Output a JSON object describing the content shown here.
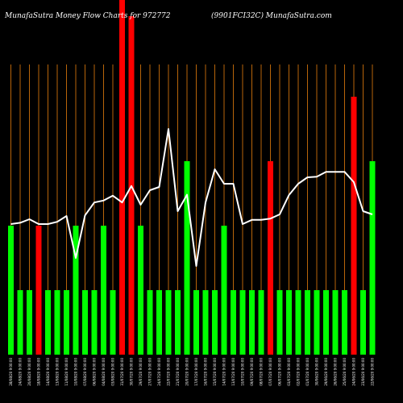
{
  "header": {
    "left_text": "MunafaSutra  Money Flow  Charts for 972772",
    "right_text": "(9901FCI32C) MunafaSutra.com"
  },
  "colors": {
    "background": "#000000",
    "gridline": "#b8650a",
    "bar_up": "#00ff00",
    "bar_down": "#ff0000",
    "line": "#ffffff",
    "text": "#ffffff"
  },
  "chart_data": {
    "type": "bar",
    "grid": true,
    "date_labels": [
      "28/08/20 9:00:00",
      "24/08/20 9:00:00",
      "20/08/20 9:00:00",
      "18/08/20 9:00:00",
      "14/08/20 9:00:00",
      "13/08/20 9:00:00",
      "11/08/20 9:00:00",
      "10/08/20 9:00:00",
      "07/08/20 9:00:00",
      "06/08/20 9:00:00",
      "04/08/20 9:00:00",
      "03/08/20 9:00:00",
      "31/07/20 9:00:00",
      "30/07/20 9:00:00",
      "29/07/20 9:00:00",
      "27/07/20 9:00:00",
      "24/07/20 9:00:00",
      "22/07/20 9:00:00",
      "21/07/20 9:00:00",
      "20/07/20 9:00:00",
      "17/07/20 9:00:00",
      "16/07/20 9:00:00",
      "15/07/20 9:00:00",
      "14/07/20 9:00:00",
      "13/07/20 9:00:00",
      "10/07/20 9:00:00",
      "09/07/20 9:00:00",
      "08/07/20 9:00:00",
      "07/07/20 9:00:00",
      "06/07/20 9:00:00",
      "03/07/20 9:00:00",
      "02/07/20 9:00:00",
      "01/07/20 9:00:00",
      "30/06/20 9:00:00",
      "29/06/20 9:00:00",
      "26/06/20 9:00:00",
      "25/06/20 9:00:00",
      "24/06/20 9:00:00",
      "23/06/20 9:00:00",
      "22/06/20 9:00:00"
    ],
    "bar_values": [
      40,
      20,
      20,
      40,
      20,
      20,
      20,
      40,
      20,
      20,
      40,
      20,
      110,
      105,
      40,
      20,
      20,
      20,
      20,
      60,
      20,
      20,
      20,
      40,
      20,
      20,
      20,
      20,
      60,
      20,
      20,
      20,
      20,
      20,
      20,
      20,
      20,
      80,
      20,
      60
    ],
    "bar_colors": [
      "green",
      "green",
      "green",
      "red",
      "green",
      "green",
      "green",
      "green",
      "green",
      "green",
      "green",
      "green",
      "red",
      "red",
      "green",
      "green",
      "green",
      "green",
      "green",
      "green",
      "green",
      "green",
      "green",
      "green",
      "green",
      "green",
      "green",
      "green",
      "red",
      "green",
      "green",
      "green",
      "green",
      "green",
      "green",
      "green",
      "green",
      "red",
      "green",
      "green"
    ],
    "line_values": [
      40.5,
      40.9,
      42,
      40.5,
      40.5,
      41.2,
      43,
      30,
      43.2,
      47.2,
      47.8,
      49.3,
      47.2,
      52.3,
      46.5,
      51,
      52,
      70,
      44.5,
      49.6,
      27.5,
      47.2,
      57.5,
      53,
      53,
      40.5,
      41.8,
      41.8,
      42.2,
      43.5,
      49.5,
      53,
      55,
      55.2,
      56.7,
      56.7,
      56.7,
      53.5,
      44.5,
      43.5
    ],
    "ylim": [
      0,
      110
    ]
  }
}
